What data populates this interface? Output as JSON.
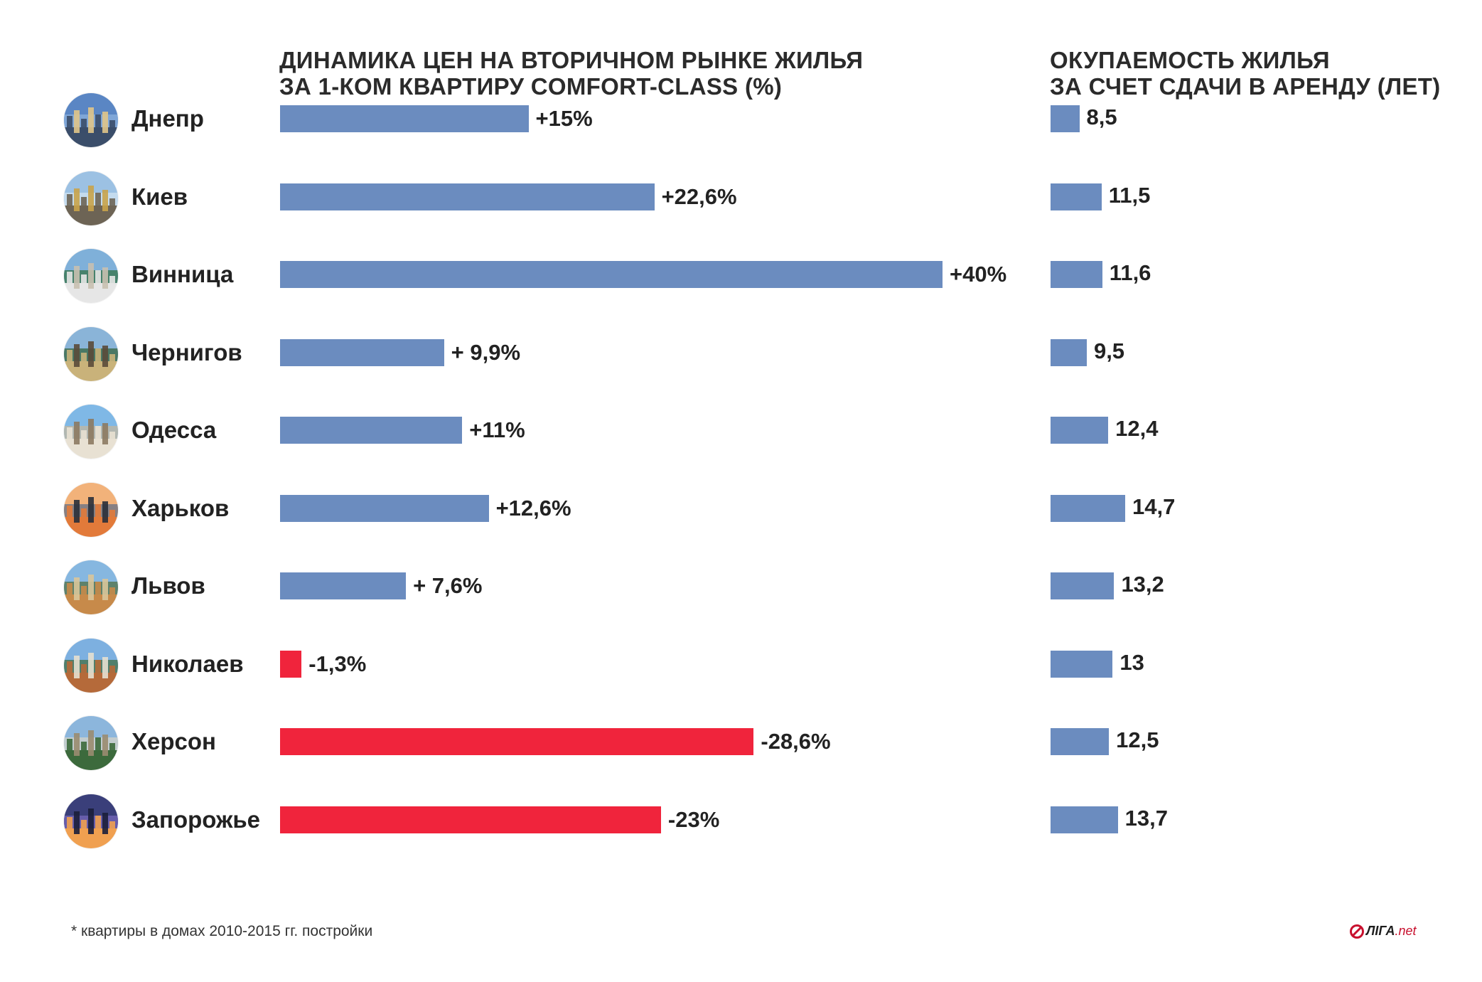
{
  "titles": {
    "left_line1": "ДИНАМИКА ЦЕН НА ВТОРИЧНОМ РЫНКЕ ЖИЛЬЯ",
    "left_line2": "ЗА 1-КОМ КВАРТИРУ COMFORT-CLASS (%)",
    "right_line1": "ОКУПАЕМОСТЬ ЖИЛЬЯ",
    "right_line2": "ЗА СЧЕТ СДАЧИ В АРЕНДУ (ЛЕТ)"
  },
  "colors": {
    "positive": "#6b8cbf",
    "negative": "#f0243c",
    "payback": "#6b8cbf"
  },
  "chart_data": [
    {
      "type": "bar",
      "orientation": "horizontal",
      "title": "ДИНАМИКА ЦЕН НА ВТОРИЧНОМ РЫНКЕ ЖИЛЬЯ ЗА 1-КОМ КВАРТИРУ COMFORT-CLASS (%)",
      "categories": [
        "Днепр",
        "Киев",
        "Винница",
        "Чернигов",
        "Одесса",
        "Харьков",
        "Львов",
        "Николаев",
        "Херсон",
        "Запорожье"
      ],
      "values": [
        15,
        22.6,
        40,
        9.9,
        11,
        12.6,
        7.6,
        -1.3,
        -28.6,
        -23
      ],
      "labels": [
        "+15%",
        "+22,6%",
        "+40%",
        "+ 9,9%",
        "+11%",
        "+12,6%",
        "+ 7,6%",
        "-1,3%",
        "-28,6%",
        "-23%"
      ],
      "note": "negative values drawn in red extending to the right by magnitude"
    },
    {
      "type": "bar",
      "orientation": "horizontal",
      "title": "ОКУПАЕМОСТЬ ЖИЛЬЯ ЗА СЧЕТ СДАЧИ В АРЕНДУ (ЛЕТ)",
      "categories": [
        "Днепр",
        "Киев",
        "Винница",
        "Чернигов",
        "Одесса",
        "Харьков",
        "Львов",
        "Николаев",
        "Херсон",
        "Запорожье"
      ],
      "values": [
        8.5,
        11.5,
        11.6,
        9.5,
        12.4,
        14.7,
        13.2,
        13,
        12.5,
        13.7
      ],
      "labels": [
        "8,5",
        "11,5",
        "11,6",
        "9,5",
        "12,4",
        "14,7",
        "13,2",
        "13",
        "12,5",
        "13,7"
      ]
    }
  ],
  "cities": [
    {
      "name": "Днепр",
      "icon": "dnipro-city-photo-icon"
    },
    {
      "name": "Киев",
      "icon": "kyiv-city-photo-icon"
    },
    {
      "name": "Винница",
      "icon": "vinnytsia-city-photo-icon"
    },
    {
      "name": "Чернигов",
      "icon": "chernihiv-city-photo-icon"
    },
    {
      "name": "Одесса",
      "icon": "odesa-city-photo-icon"
    },
    {
      "name": "Харьков",
      "icon": "kharkiv-city-photo-icon"
    },
    {
      "name": "Львов",
      "icon": "lviv-city-photo-icon"
    },
    {
      "name": "Николаев",
      "icon": "mykolaiv-city-photo-icon"
    },
    {
      "name": "Херсон",
      "icon": "kherson-city-photo-icon"
    },
    {
      "name": "Запорожье",
      "icon": "zaporizhzhia-city-photo-icon"
    }
  ],
  "footnote": "* квартиры в домах 2010-2015 гг. постройки",
  "logo": {
    "text": "ЛІГА",
    "suffix": ".net"
  }
}
